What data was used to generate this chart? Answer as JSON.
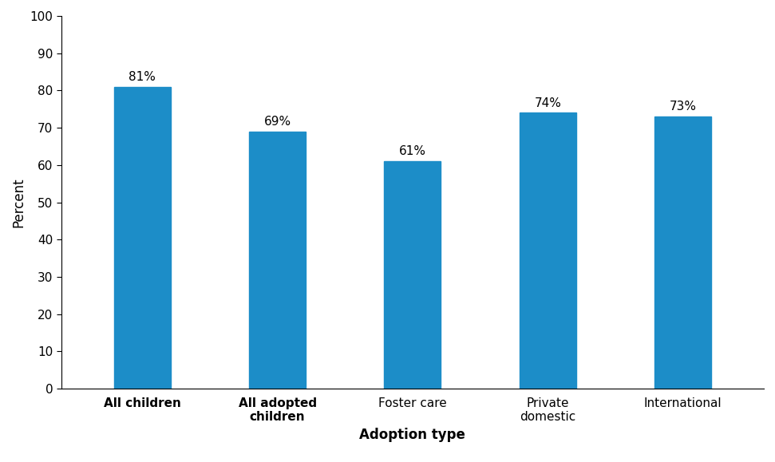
{
  "categories": [
    "All children",
    "All adopted\nchildren",
    "Foster care",
    "Private\ndomestic",
    "International"
  ],
  "values": [
    81,
    69,
    61,
    74,
    73
  ],
  "bar_color": "#1c8dc8",
  "bar_labels": [
    "81%",
    "69%",
    "61%",
    "74%",
    "73%"
  ],
  "ylabel": "Percent",
  "xlabel": "Adoption type",
  "ylim": [
    0,
    100
  ],
  "yticks": [
    0,
    10,
    20,
    30,
    40,
    50,
    60,
    70,
    80,
    90,
    100
  ],
  "bold_categories": [
    true,
    true,
    false,
    false,
    false
  ],
  "axis_label_fontsize": 12,
  "tick_label_fontsize": 11,
  "bar_label_fontsize": 11,
  "background_color": "#ffffff"
}
